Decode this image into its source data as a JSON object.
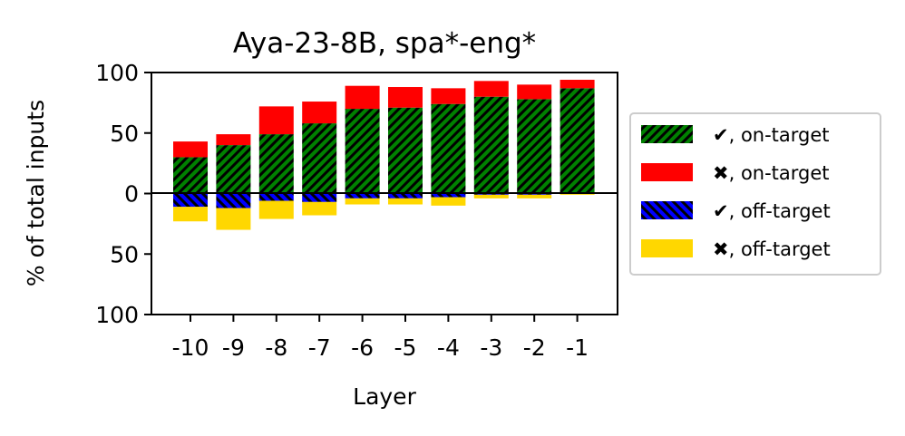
{
  "chart_data": {
    "type": "bar",
    "stacked": "diverging",
    "title": "Aya-23-8B, spa*-eng*",
    "xlabel": "Layer",
    "ylabel": "% of total inputs",
    "categories": [
      "-10",
      "-9",
      "-8",
      "-7",
      "-6",
      "-5",
      "-4",
      "-3",
      "-2",
      "-1"
    ],
    "ylim": [
      -100,
      100
    ],
    "yticks": [
      100,
      50,
      0,
      -50,
      -100
    ],
    "ytick_labels": [
      "100",
      "50",
      "0",
      "50",
      "100"
    ],
    "series": [
      {
        "name": "✔, on-target",
        "direction": "up",
        "color": "#008000",
        "hatch": "//",
        "values": [
          30,
          40,
          49,
          58,
          70,
          71,
          74,
          80,
          78,
          87
        ]
      },
      {
        "name": "✖, on-target",
        "direction": "up",
        "color": "#ff0000",
        "hatch": "",
        "values": [
          13,
          9,
          23,
          18,
          19,
          17,
          13,
          13,
          12,
          7
        ]
      },
      {
        "name": "✔, off-target",
        "direction": "down",
        "color": "#0000ff",
        "hatch": "\\\\",
        "values": [
          11,
          12,
          6,
          7,
          4,
          4,
          3,
          1,
          1,
          0
        ]
      },
      {
        "name": "✖, off-target",
        "direction": "down",
        "color": "#ffd700",
        "hatch": "",
        "values": [
          12,
          18,
          15,
          11,
          5,
          5,
          7,
          3,
          3,
          1
        ]
      }
    ],
    "grid": false,
    "legend_position": "outside-right"
  }
}
